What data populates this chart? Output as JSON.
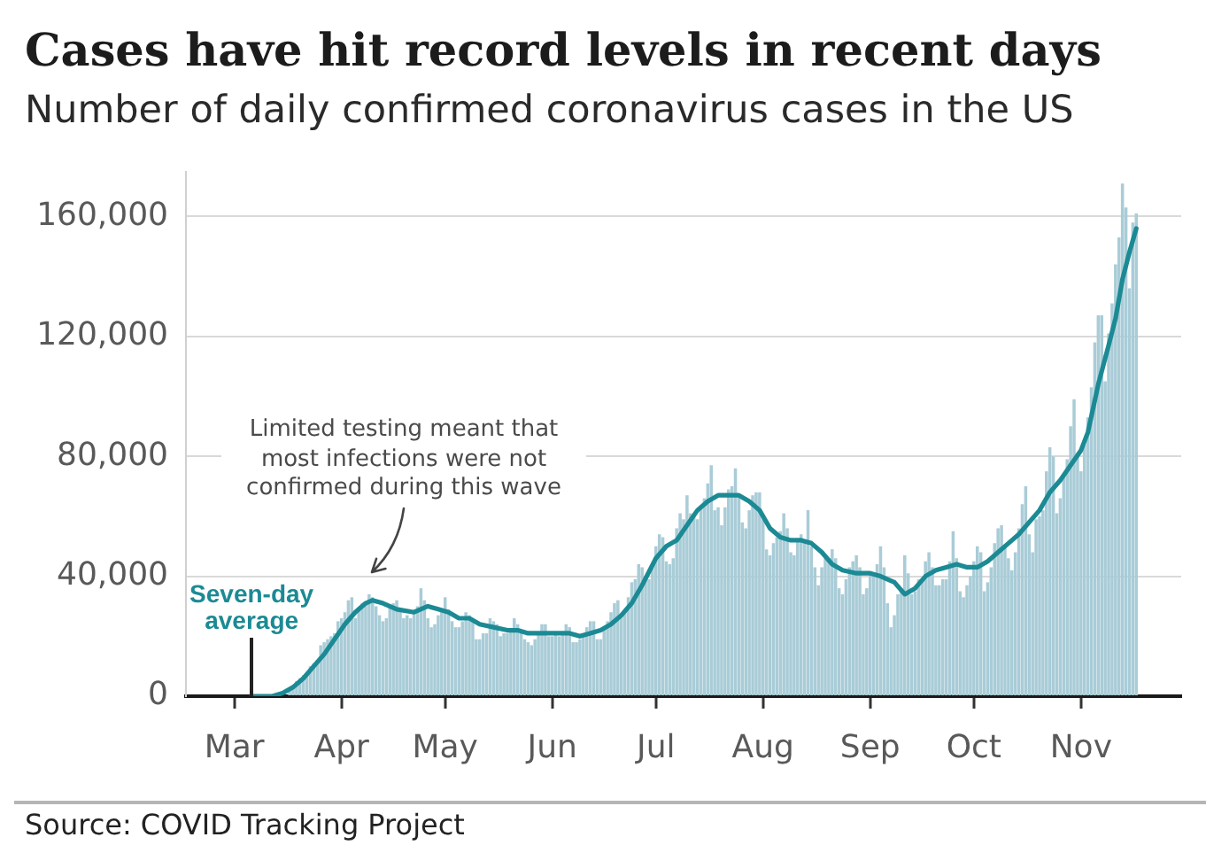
{
  "chart_data": {
    "type": "bar",
    "title": "Cases have hit record levels in recent days",
    "subtitle": "Number of daily confirmed coronavirus cases in the US",
    "x": [
      "--03-01",
      "--03-02",
      "--03-03",
      "--03-04",
      "--03-05",
      "--03-06",
      "--03-07",
      "--03-08",
      "--03-09",
      "--03-10",
      "--03-11",
      "--03-12",
      "--03-13",
      "--03-14",
      "--03-15",
      "--03-16",
      "--03-17",
      "--03-18",
      "--03-19",
      "--03-20",
      "--03-21",
      "--03-22",
      "--03-23",
      "--03-24",
      "--03-25",
      "--03-26",
      "--03-27",
      "--03-28",
      "--03-29",
      "--03-30",
      "--03-31",
      "--04-01",
      "--04-02",
      "--04-03",
      "--04-04",
      "--04-05",
      "--04-06",
      "--04-07",
      "--04-08",
      "--04-09",
      "--04-10",
      "--04-11",
      "--04-12",
      "--04-13",
      "--04-14",
      "--04-15",
      "--04-16",
      "--04-17",
      "--04-18",
      "--04-19",
      "--04-20",
      "--04-21",
      "--04-22",
      "--04-23",
      "--04-24",
      "--04-25",
      "--04-26",
      "--04-27",
      "--04-28",
      "--04-29",
      "--04-30",
      "--05-01",
      "--05-02",
      "--05-03",
      "--05-04",
      "--05-05",
      "--05-06",
      "--05-07",
      "--05-08",
      "--05-09",
      "--05-10",
      "--05-11",
      "--05-12",
      "--05-13",
      "--05-14",
      "--05-15",
      "--05-16",
      "--05-17",
      "--05-18",
      "--05-19",
      "--05-20",
      "--05-21",
      "--05-22",
      "--05-23",
      "--05-24",
      "--05-25",
      "--05-26",
      "--05-27",
      "--05-28",
      "--05-29",
      "--05-30",
      "--05-31",
      "--06-01",
      "--06-02",
      "--06-03",
      "--06-04",
      "--06-05",
      "--06-06",
      "--06-07",
      "--06-08",
      "--06-09",
      "--06-10",
      "--06-11",
      "--06-12",
      "--06-13",
      "--06-14",
      "--06-15",
      "--06-16",
      "--06-17",
      "--06-18",
      "--06-19",
      "--06-20",
      "--06-21",
      "--06-22",
      "--06-23",
      "--06-24",
      "--06-25",
      "--06-26",
      "--06-27",
      "--06-28",
      "--06-29",
      "--06-30",
      "--07-01",
      "--07-02",
      "--07-03",
      "--07-04",
      "--07-05",
      "--07-06",
      "--07-07",
      "--07-08",
      "--07-09",
      "--07-10",
      "--07-11",
      "--07-12",
      "--07-13",
      "--07-14",
      "--07-15",
      "--07-16",
      "--07-17",
      "--07-18",
      "--07-19",
      "--07-20",
      "--07-21",
      "--07-22",
      "--07-23",
      "--07-24",
      "--07-25",
      "--07-26",
      "--07-27",
      "--07-28",
      "--07-29",
      "--07-30",
      "--07-31",
      "--08-01",
      "--08-02",
      "--08-03",
      "--08-04",
      "--08-05",
      "--08-06",
      "--08-07",
      "--08-08",
      "--08-09",
      "--08-10",
      "--08-11",
      "--08-12",
      "--08-13",
      "--08-14",
      "--08-15",
      "--08-16",
      "--08-17",
      "--08-18",
      "--08-19",
      "--08-20",
      "--08-21",
      "--08-22",
      "--08-23",
      "--08-24",
      "--08-25",
      "--08-26",
      "--08-27",
      "--08-28",
      "--08-29",
      "--08-30",
      "--08-31",
      "--09-01",
      "--09-02",
      "--09-03",
      "--09-04",
      "--09-05",
      "--09-06",
      "--09-07",
      "--09-08",
      "--09-09",
      "--09-10",
      "--09-11",
      "--09-12",
      "--09-13",
      "--09-14",
      "--09-15",
      "--09-16",
      "--09-17",
      "--09-18",
      "--09-19",
      "--09-20",
      "--09-21",
      "--09-22",
      "--09-23",
      "--09-24",
      "--09-25",
      "--09-26",
      "--09-27",
      "--09-28",
      "--09-29",
      "--09-30",
      "--10-01",
      "--10-02",
      "--10-03",
      "--10-04",
      "--10-05",
      "--10-06",
      "--10-07",
      "--10-08",
      "--10-09",
      "--10-10",
      "--10-11",
      "--10-12",
      "--10-13",
      "--10-14",
      "--10-15",
      "--10-16",
      "--10-17",
      "--10-18",
      "--10-19",
      "--10-20",
      "--10-21",
      "--10-22",
      "--10-23",
      "--10-24",
      "--10-25",
      "--10-26",
      "--10-27",
      "--10-28",
      "--10-29",
      "--10-30",
      "--10-31",
      "--11-01",
      "--11-02",
      "--11-03",
      "--11-04",
      "--11-05",
      "--11-06",
      "--11-07",
      "--11-08",
      "--11-09",
      "--11-10",
      "--11-11",
      "--11-12",
      "--11-13",
      "--11-14",
      "--11-15",
      "--11-16",
      "--11-17"
    ],
    "series": [
      {
        "color": "#a9ccd7",
        "values": [
          0,
          0,
          0,
          0,
          0,
          0,
          0,
          0,
          0,
          0,
          0,
          0,
          null,
          null,
          null,
          null,
          2000,
          3000,
          5000,
          6000,
          7000,
          8000,
          10000,
          11000,
          12000,
          17000,
          18000,
          19000,
          20000,
          21000,
          25000,
          26000,
          28000,
          32000,
          33000,
          26000,
          29000,
          31000,
          31000,
          34000,
          33000,
          30000,
          27000,
          25000,
          26000,
          30000,
          31000,
          32000,
          29000,
          26000,
          27000,
          26000,
          28000,
          30000,
          36000,
          32000,
          26000,
          23000,
          24000,
          27000,
          29000,
          33000,
          29000,
          25000,
          23000,
          23000,
          25000,
          28000,
          27000,
          25000,
          19000,
          19000,
          21000,
          21000,
          26000,
          25000,
          24000,
          20000,
          21000,
          21000,
          22000,
          26000,
          24000,
          22000,
          19000,
          18000,
          17000,
          19000,
          21000,
          24000,
          24000,
          20000,
          20000,
          21000,
          20000,
          21000,
          24000,
          23000,
          18000,
          18000,
          19000,
          21000,
          23000,
          25000,
          25000,
          19000,
          19000,
          23000,
          25000,
          28000,
          31000,
          32000,
          27000,
          29000,
          33000,
          38000,
          39000,
          44000,
          43000,
          40000,
          39000,
          44000,
          50000,
          54000,
          53000,
          45000,
          44000,
          46000,
          56000,
          61000,
          59000,
          67000,
          61000,
          60000,
          59000,
          63000,
          66000,
          71000,
          77000,
          62000,
          63000,
          57000,
          63000,
          69000,
          70000,
          76000,
          67000,
          58000,
          56000,
          62000,
          67000,
          68000,
          68000,
          59000,
          49000,
          47000,
          51000,
          53000,
          55000,
          61000,
          56000,
          48000,
          47000,
          52000,
          54000,
          52000,
          62000,
          50000,
          43000,
          37000,
          43000,
          46000,
          46000,
          49000,
          46000,
          36000,
          34000,
          39000,
          43000,
          45000,
          47000,
          43000,
          34000,
          36000,
          41000,
          40000,
          44000,
          50000,
          43000,
          31000,
          23000,
          27000,
          34000,
          36000,
          47000,
          41000,
          34000,
          35000,
          39000,
          39000,
          45000,
          48000,
          43000,
          37000,
          37000,
          39000,
          39000,
          45000,
          55000,
          46000,
          35000,
          33000,
          37000,
          40000,
          45000,
          50000,
          48000,
          35000,
          38000,
          43000,
          51000,
          56000,
          57000,
          50000,
          46000,
          42000,
          48000,
          56000,
          64000,
          70000,
          54000,
          48000,
          59000,
          60000,
          62000,
          75000,
          83000,
          80000,
          61000,
          66000,
          74000,
          79000,
          90000,
          99000,
          81000,
          75000,
          84000,
          93000,
          103000,
          118000,
          127000,
          127000,
          105000,
          121000,
          131000,
          144000,
          153000,
          171000,
          163000,
          136000,
          158000,
          161000
        ]
      },
      {
        "name": "Seven-day average",
        "type": "line",
        "color": "#1b8a94",
        "x": [
          "--03-06",
          "--03-09",
          "--03-12",
          "--03-15",
          "--03-18",
          "--03-21",
          "--03-24",
          "--03-27",
          "--03-30",
          "--04-02",
          "--04-05",
          "--04-08",
          "--04-10",
          "--04-13",
          "--04-17",
          "--04-22",
          "--04-26",
          "--04-29",
          "--05-02",
          "--05-05",
          "--05-08",
          "--05-11",
          "--05-15",
          "--05-19",
          "--05-22",
          "--05-25",
          "--05-29",
          "--06-02",
          "--06-06",
          "--06-09",
          "--06-12",
          "--06-15",
          "--06-18",
          "--06-21",
          "--06-24",
          "--06-27",
          "--07-01",
          "--07-04",
          "--07-07",
          "--07-10",
          "--07-13",
          "--07-16",
          "--07-19",
          "--07-22",
          "--07-25",
          "--07-28",
          "--07-31",
          "--08-03",
          "--08-06",
          "--08-09",
          "--08-12",
          "--08-15",
          "--08-18",
          "--08-21",
          "--08-24",
          "--08-28",
          "--09-01",
          "--09-04",
          "--09-08",
          "--09-11",
          "--09-14",
          "--09-17",
          "--09-20",
          "--09-23",
          "--09-26",
          "--09-29",
          "--10-02",
          "--10-05",
          "--10-08",
          "--10-11",
          "--10-14",
          "--10-17",
          "--10-20",
          "--10-23",
          "--10-26",
          "--10-29",
          "--11-01",
          "--11-03",
          "--11-06",
          "--11-09",
          "--11-11",
          "--11-13",
          "--11-15",
          "--11-17"
        ],
        "values": [
          0,
          0,
          0,
          1000,
          3000,
          6000,
          10000,
          14000,
          19000,
          24000,
          28000,
          31000,
          32000,
          31000,
          29000,
          28000,
          30000,
          29000,
          28000,
          26000,
          26000,
          24000,
          23000,
          22000,
          22000,
          21000,
          21000,
          21000,
          21000,
          20000,
          21000,
          22000,
          24000,
          27000,
          31000,
          37000,
          46000,
          50000,
          52000,
          57000,
          62000,
          65000,
          67000,
          67000,
          67000,
          65000,
          62000,
          56000,
          53000,
          52000,
          52000,
          51000,
          48000,
          44000,
          42000,
          41000,
          41000,
          40000,
          38000,
          34000,
          36000,
          40000,
          42000,
          43000,
          44000,
          43000,
          43000,
          45000,
          48000,
          51000,
          54000,
          58000,
          62000,
          68000,
          72000,
          77000,
          82000,
          88000,
          104000,
          117000,
          126000,
          139000,
          148000,
          156000
        ]
      }
    ],
    "xlim": [
      "--02-16",
      "--11-30"
    ],
    "xticks": [
      {
        "value": "--03-01",
        "label": "Mar"
      },
      {
        "value": "--04-01",
        "label": "Apr"
      },
      {
        "value": "--05-01",
        "label": "May"
      },
      {
        "value": "--06-01",
        "label": "Jun"
      },
      {
        "value": "--07-01",
        "label": "Jul"
      },
      {
        "value": "--08-01",
        "label": "Aug"
      },
      {
        "value": "--09-01",
        "label": "Sep"
      },
      {
        "value": "--10-01",
        "label": "Oct"
      },
      {
        "value": "--11-01",
        "label": "Nov"
      }
    ],
    "ylim": [
      0,
      175000
    ],
    "yticks": [
      0,
      {
        "value": 40000,
        "label": "40,000"
      },
      {
        "value": 80000,
        "label": "80,000"
      },
      {
        "value": 120000,
        "label": "120,000"
      },
      {
        "value": 160000,
        "label": "160,000"
      }
    ],
    "grid": "y",
    "annotations": [
      "Limited testing meant that most infections were not confirmed during this wave",
      "Source: COVID Tracking Project"
    ]
  }
}
